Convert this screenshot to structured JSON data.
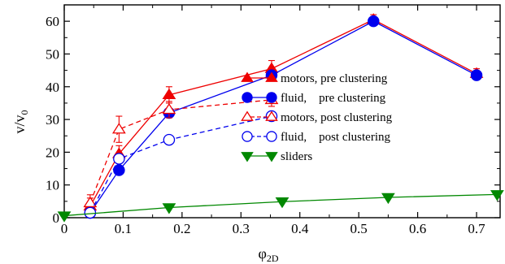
{
  "chart_data": {
    "type": "line",
    "title": "",
    "xlabel": "φ",
    "xlabel_sub": "2D",
    "ylabel": "v/v",
    "ylabel_sub": "0",
    "xlim": [
      0,
      0.74
    ],
    "ylim": [
      0,
      65
    ],
    "xticks": [
      0,
      0.1,
      0.2,
      0.3,
      0.4,
      0.5,
      0.6,
      0.7
    ],
    "xtick_labels": [
      "0",
      "0.1",
      "0.2",
      "0.3",
      "0.4",
      "0.5",
      "0.6",
      "0.7"
    ],
    "yticks": [
      0,
      10,
      20,
      30,
      40,
      50,
      60
    ],
    "ytick_labels": [
      "0",
      "10",
      "20",
      "30",
      "40",
      "50",
      "60"
    ],
    "grid": false,
    "legend_position": "right-middle",
    "series": [
      {
        "name": "motors, pre clustering",
        "color": "#ee0000",
        "marker": "triangle-up",
        "filled": true,
        "dashed": false,
        "x": [
          0.044,
          0.093,
          0.178,
          0.352,
          0.525,
          0.7
        ],
        "y": [
          3.5,
          19.5,
          37.5,
          45.5,
          60.5,
          44.0
        ],
        "err": [
          2.5,
          2.5,
          2.5,
          2.5,
          1.5,
          1.5
        ]
      },
      {
        "name": "fluid,    pre clustering",
        "color": "#0000ee",
        "marker": "circle",
        "filled": true,
        "dashed": false,
        "x": [
          0.044,
          0.093,
          0.178,
          0.352,
          0.525,
          0.7
        ],
        "y": [
          1.5,
          14.5,
          32.0,
          43.5,
          60.0,
          43.5
        ],
        "err": [
          0,
          0,
          0,
          0,
          0,
          0
        ]
      },
      {
        "name": "motors, post clustering",
        "color": "#ee0000",
        "marker": "triangle-up",
        "filled": false,
        "dashed": true,
        "x": [
          0.044,
          0.093,
          0.178,
          0.352
        ],
        "y": [
          4.5,
          27.0,
          33.0,
          36.0
        ],
        "err": [
          2.5,
          4.0,
          2.5,
          2.0
        ]
      },
      {
        "name": "fluid,    post clustering",
        "color": "#0000ee",
        "marker": "circle",
        "filled": false,
        "dashed": true,
        "x": [
          0.044,
          0.093,
          0.178,
          0.352
        ],
        "y": [
          1.5,
          18.0,
          23.8,
          31.0
        ],
        "err": [
          0,
          0,
          0,
          0
        ]
      },
      {
        "name": "sliders",
        "color": "#008800",
        "marker": "triangle-down",
        "filled": true,
        "dashed": false,
        "x": [
          0,
          0.178,
          0.37,
          0.55,
          0.735
        ],
        "y": [
          0.6,
          3.1,
          4.9,
          6.2,
          7.1
        ],
        "err": [
          0,
          0,
          0,
          0,
          0
        ]
      }
    ]
  }
}
